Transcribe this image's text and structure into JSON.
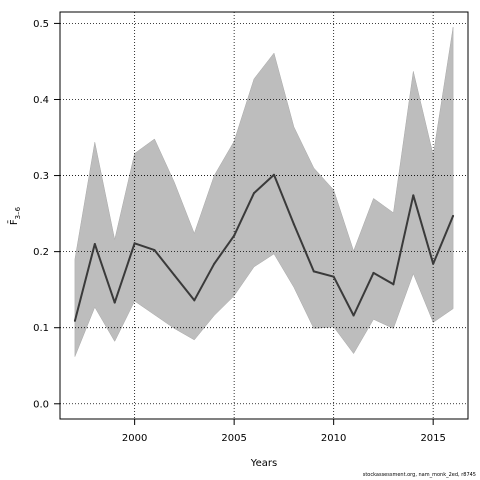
{
  "chart_data": {
    "type": "line",
    "title": "",
    "xlabel": "Years",
    "ylabel": "F̄3–6",
    "ylabel_main": "F̄",
    "ylabel_sub": "3–6",
    "xlim": [
      1996.25,
      2016.75
    ],
    "ylim": [
      -0.02,
      0.515
    ],
    "x_ticks": [
      2000,
      2005,
      2010,
      2015
    ],
    "x_tick_labels": [
      "2000",
      "2005",
      "2010",
      "2015"
    ],
    "y_ticks": [
      0.0,
      0.1,
      0.2,
      0.3,
      0.4,
      0.5
    ],
    "y_tick_labels": [
      "0.0",
      "0.1",
      "0.2",
      "0.3",
      "0.4",
      "0.5"
    ],
    "grid": true,
    "x": [
      1997,
      1998,
      1999,
      2000,
      2001,
      2002,
      2003,
      2004,
      2005,
      2006,
      2007,
      2008,
      2009,
      2010,
      2011,
      2012,
      2013,
      2014,
      2015,
      2016
    ],
    "series": [
      {
        "values": [
          0.109,
          0.21,
          0.133,
          0.211,
          0.202,
          0.169,
          0.136,
          0.184,
          0.221,
          0.277,
          0.301,
          0.236,
          0.174,
          0.167,
          0.116,
          0.172,
          0.157,
          0.274,
          0.184,
          0.247
        ],
        "color": "#3a3a3a"
      }
    ],
    "band": {
      "lower": [
        0.062,
        0.127,
        0.082,
        0.135,
        0.117,
        0.099,
        0.084,
        0.116,
        0.142,
        0.18,
        0.197,
        0.153,
        0.099,
        0.101,
        0.066,
        0.111,
        0.099,
        0.171,
        0.107,
        0.125
      ],
      "upper": [
        0.19,
        0.344,
        0.216,
        0.329,
        0.348,
        0.291,
        0.224,
        0.3,
        0.345,
        0.427,
        0.461,
        0.364,
        0.31,
        0.281,
        0.201,
        0.27,
        0.251,
        0.437,
        0.327,
        0.495
      ],
      "color": "#bdbdbd"
    }
  },
  "footnote": "stockassessment.org, nam_monk_2ed, r8745"
}
